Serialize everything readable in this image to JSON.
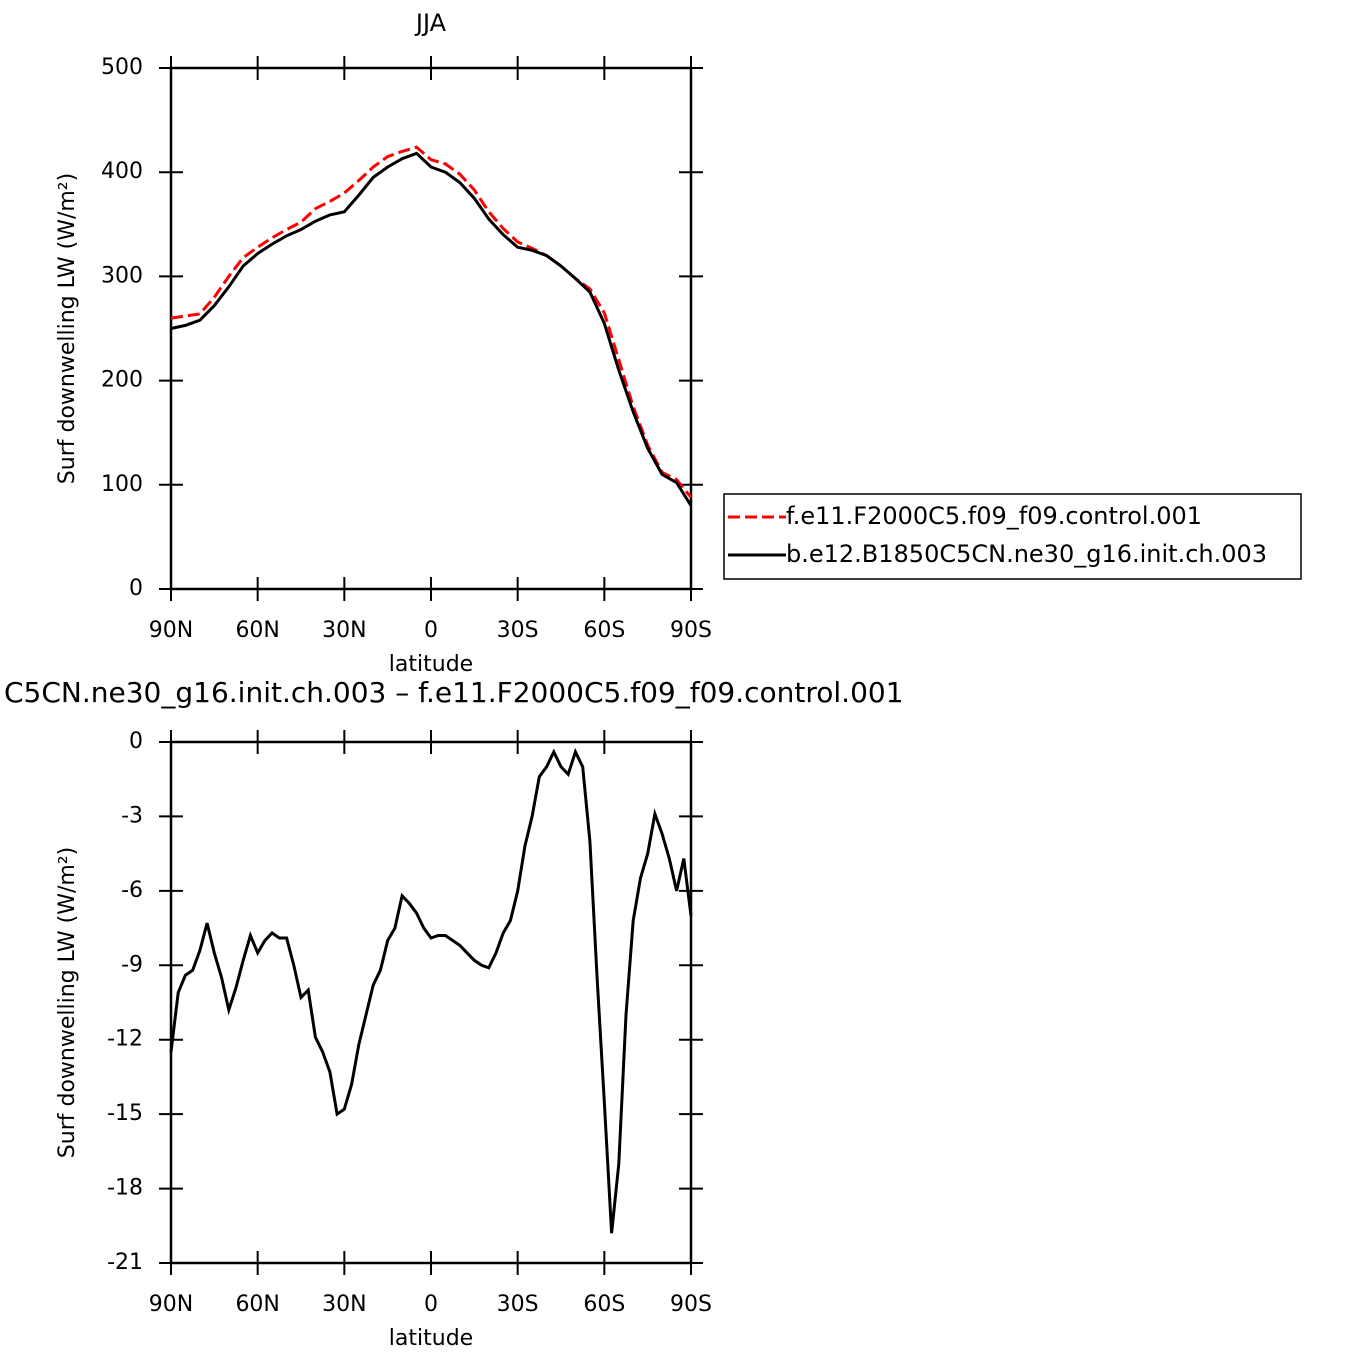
{
  "chart_data": [
    {
      "type": "line",
      "title": "JJA",
      "xlabel": "latitude",
      "ylabel": "Surf downwelling LW (W/m²)",
      "x": [
        90,
        85,
        80,
        75,
        70,
        65,
        60,
        55,
        50,
        45,
        40,
        35,
        30,
        25,
        20,
        15,
        10,
        5,
        0,
        -5,
        -10,
        -15,
        -20,
        -25,
        -30,
        -35,
        -40,
        -45,
        -50,
        -55,
        -60,
        -65,
        -70,
        -75,
        -80,
        -85,
        -90
      ],
      "xlim": [
        90,
        -90
      ],
      "xticks": [
        {
          "value": 90,
          "label": "90N"
        },
        {
          "value": 60,
          "label": "60N"
        },
        {
          "value": 30,
          "label": "30N"
        },
        0,
        {
          "value": -30,
          "label": "30S"
        },
        {
          "value": -60,
          "label": "60S"
        },
        {
          "value": -90,
          "label": "90S"
        }
      ],
      "ylim": [
        0,
        500
      ],
      "yticks": [
        0,
        100,
        200,
        300,
        400,
        500
      ],
      "legend": "right",
      "series": [
        {
          "name": "f.e11.F2000C5.f09_f09.control.001",
          "color": "#ff0000",
          "dash": true,
          "values": [
            260,
            262,
            264,
            280,
            300,
            318,
            328,
            337,
            345,
            352,
            365,
            372,
            380,
            392,
            405,
            415,
            420,
            424,
            412,
            408,
            398,
            383,
            362,
            346,
            333,
            327,
            320,
            310,
            298,
            288,
            265,
            220,
            175,
            138,
            112,
            105,
            88
          ]
        },
        {
          "name": "b.e12.B1850C5CN.ne30_g16.init.ch.003",
          "color": "#000000",
          "dash": false,
          "values": [
            250,
            253,
            258,
            272,
            290,
            310,
            322,
            331,
            339,
            345,
            353,
            359,
            362,
            378,
            395,
            405,
            413,
            418,
            405,
            400,
            390,
            375,
            355,
            340,
            328,
            325,
            320,
            310,
            298,
            285,
            255,
            210,
            170,
            135,
            110,
            102,
            80
          ]
        }
      ]
    },
    {
      "type": "line",
      "title": "C5CN.ne30_g16.init.ch.003 – f.e11.F2000C5.f09_f09.control.001",
      "xlabel": "latitude",
      "ylabel": "Surf downwelling LW (W/m²)",
      "x": [
        90,
        87.5,
        85,
        82.5,
        80,
        77.5,
        75,
        72.5,
        70,
        67.5,
        65,
        62.5,
        60,
        57.5,
        55,
        52.5,
        50,
        47.5,
        45,
        42.5,
        40,
        37.5,
        35,
        32.5,
        30,
        27.5,
        25,
        22.5,
        20,
        17.5,
        15,
        12.5,
        10,
        7.5,
        5,
        2.5,
        0,
        -2.5,
        -5,
        -7.5,
        -10,
        -12.5,
        -15,
        -17.5,
        -20,
        -22.5,
        -25,
        -27.5,
        -30,
        -32.5,
        -35,
        -37.5,
        -40,
        -42.5,
        -45,
        -47.5,
        -50,
        -52.5,
        -55,
        -57.5,
        -60,
        -62.5,
        -65,
        -67.5,
        -70,
        -72.5,
        -75,
        -77.5,
        -80,
        -82.5,
        -85,
        -87.5,
        -90
      ],
      "xlim": [
        90,
        -90
      ],
      "xticks": [
        {
          "value": 90,
          "label": "90N"
        },
        {
          "value": 60,
          "label": "60N"
        },
        {
          "value": 30,
          "label": "30N"
        },
        0,
        {
          "value": -30,
          "label": "30S"
        },
        {
          "value": -60,
          "label": "60S"
        },
        {
          "value": -90,
          "label": "90S"
        }
      ],
      "ylim": [
        -21,
        0
      ],
      "yticks": [
        0,
        -3,
        -6,
        -9,
        -12,
        -15,
        -18,
        -21
      ],
      "series": [
        {
          "color": "#000000",
          "dash": false,
          "values": [
            -12.5,
            -10.1,
            -9.4,
            -9.2,
            -8.4,
            -7.3,
            -8.5,
            -9.5,
            -10.8,
            -9.9,
            -8.8,
            -7.8,
            -8.5,
            -8.0,
            -7.7,
            -7.9,
            -7.9,
            -9.0,
            -10.3,
            -10.0,
            -11.9,
            -12.5,
            -13.3,
            -15.0,
            -14.8,
            -13.8,
            -12.2,
            -11.0,
            -9.8,
            -9.2,
            -8.0,
            -7.5,
            -6.2,
            -6.5,
            -6.9,
            -7.5,
            -7.9,
            -7.8,
            -7.8,
            -8.0,
            -8.2,
            -8.5,
            -8.8,
            -9.0,
            -9.1,
            -8.5,
            -7.7,
            -7.2,
            -6.0,
            -4.2,
            -3.0,
            -1.4,
            -1.0,
            -0.4,
            -1.0,
            -1.3,
            -0.4,
            -1.0,
            -4.0,
            -9.5,
            -14.5,
            -19.8,
            -17.0,
            -11.0,
            -7.2,
            -5.5,
            -4.5,
            -2.9,
            -3.7,
            -4.7,
            -6.0,
            -4.7,
            -7.0
          ]
        }
      ]
    }
  ]
}
